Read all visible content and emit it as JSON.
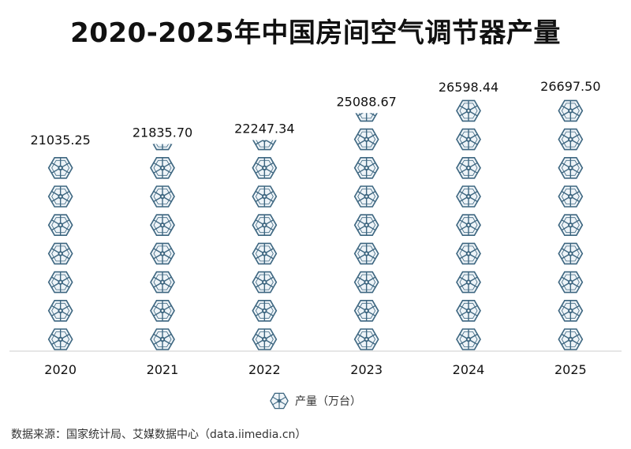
{
  "chart_data": {
    "type": "bar",
    "title": "2020-2025年中国房间空气调节器产量",
    "categories": [
      "2020",
      "2021",
      "2022",
      "2023",
      "2024",
      "2025"
    ],
    "series": [
      {
        "name": "产量（万台）",
        "values": [
          21035.25,
          21835.7,
          22247.34,
          25088.67,
          26598.44,
          26697.5
        ],
        "value_labels": [
          "21035.25",
          "21835.70",
          "22247.34",
          "25088.67",
          "26598.44",
          "26697.50"
        ]
      }
    ],
    "ylim": [
      0,
      26697.5
    ],
    "grid": false,
    "legend_position": "bottom",
    "bar_style": "pictograph",
    "bar_icon": "snowflake-hexagon-icon",
    "colors": {
      "icon": "#3d6680",
      "icon_fill": "#eef4f8",
      "axis": "#cccccc"
    }
  },
  "legend": {
    "label": "产量（万台）",
    "icon": "snowflake-hexagon-icon"
  },
  "source": "数据来源：国家统计局、艾媒数据中心（data.iimedia.cn）"
}
